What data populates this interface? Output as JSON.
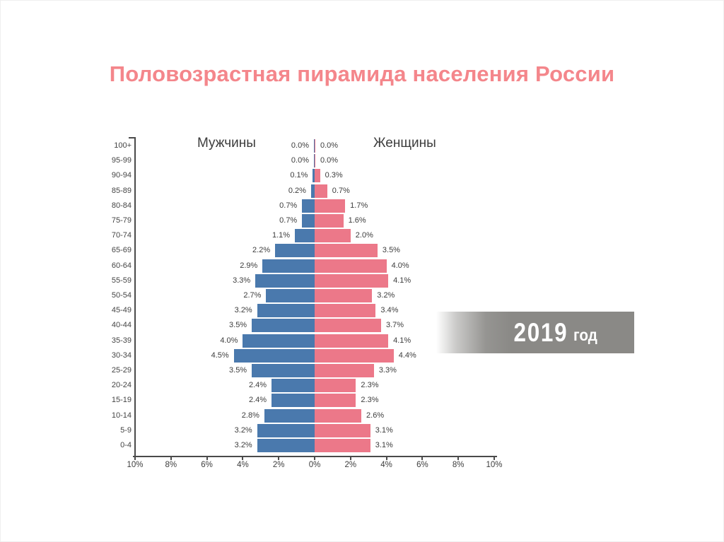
{
  "slide": {
    "title": "Половозрастная пирамида населения России"
  },
  "chart_data": {
    "type": "bar",
    "subtype": "population-pyramid",
    "title": "Половозрастная пирамида населения России",
    "categories": [
      "100+",
      "95-99",
      "90-94",
      "85-89",
      "80-84",
      "75-79",
      "70-74",
      "65-69",
      "60-64",
      "55-59",
      "50-54",
      "45-49",
      "40-44",
      "35-39",
      "30-34",
      "25-29",
      "20-24",
      "15-19",
      "10-14",
      "5-9",
      "0-4"
    ],
    "series": [
      {
        "name": "Мужчины",
        "side": "left",
        "color": "#4a79ad",
        "values": [
          0.0,
          0.0,
          0.1,
          0.2,
          0.7,
          0.7,
          1.1,
          2.2,
          2.9,
          3.3,
          2.7,
          3.2,
          3.5,
          4.0,
          4.5,
          3.5,
          2.4,
          2.4,
          2.8,
          3.2,
          3.2
        ]
      },
      {
        "name": "Женщины",
        "side": "right",
        "color": "#ec7889",
        "values": [
          0.0,
          0.0,
          0.3,
          0.7,
          1.7,
          1.6,
          2.0,
          3.5,
          4.0,
          4.1,
          3.2,
          3.4,
          3.7,
          4.1,
          4.4,
          3.3,
          2.3,
          2.3,
          2.6,
          3.1,
          3.1
        ]
      }
    ],
    "value_suffix": "%",
    "x_axis": {
      "tick_labels": [
        "10%",
        "8%",
        "6%",
        "4%",
        "2%",
        "0%",
        "2%",
        "4%",
        "6%",
        "8%",
        "10%"
      ],
      "max_percent_each_side": 10,
      "grid": false
    },
    "legend": {
      "left_label": "Мужчины",
      "right_label": "Женщины",
      "position": "top"
    }
  },
  "year_badge": {
    "year": "2019",
    "unit": "год",
    "bg_color": "#8a8986",
    "text_color": "#ffffff"
  },
  "colors": {
    "title": "#f4868b",
    "male_bar": "#4a79ad",
    "female_bar": "#ec7889",
    "axis": "#4a4a4a",
    "label_text": "#3d3d3d"
  }
}
